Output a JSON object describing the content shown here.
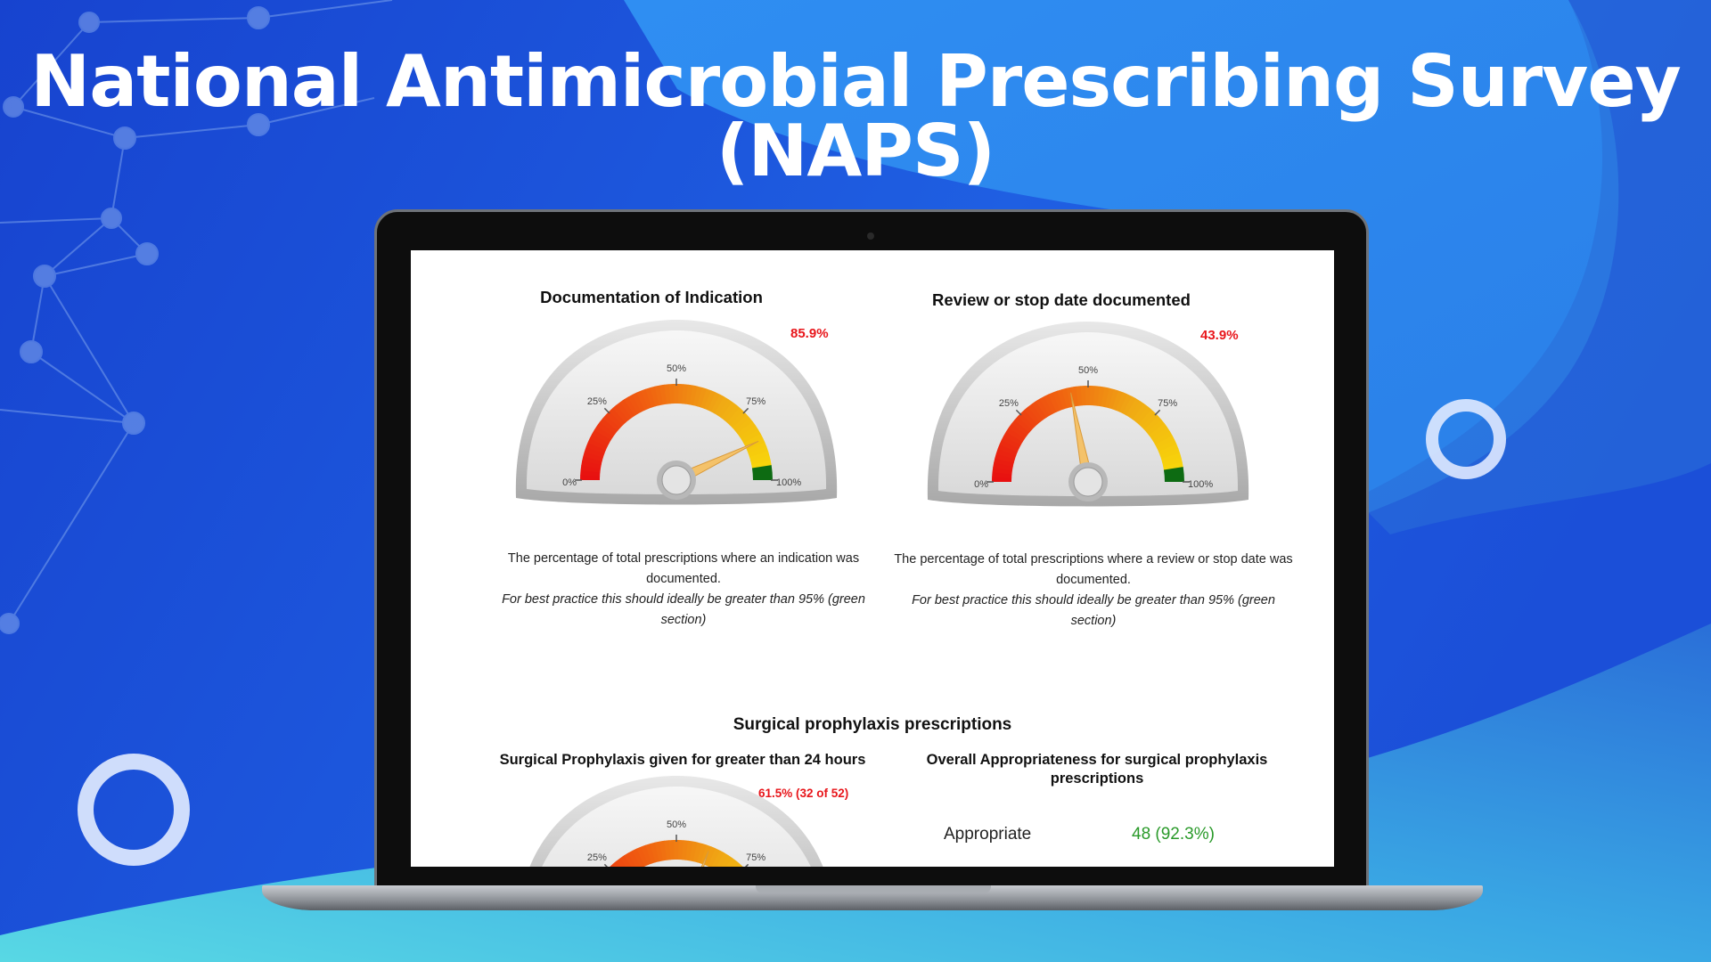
{
  "header": {
    "title_line1": "National Antimicrobial Prescribing Survey",
    "title_line2": "(NAPS)"
  },
  "colors": {
    "bg_blue": "#1a47d6",
    "bg_light_blue": "#2e8ff0",
    "teal": "#4fd3e0",
    "value_red": "#e8161b",
    "appropriate_green": "#2a9a2a"
  },
  "gauge_ticks": [
    "0%",
    "25%",
    "50%",
    "75%",
    "100%"
  ],
  "panels": [
    {
      "title": "Documentation of Indication",
      "value_label": "85.9%",
      "value": 85.9,
      "description": "The percentage of total prescriptions where an indication was documented.",
      "note": "For best practice this should ideally be greater than 95% (green section)"
    },
    {
      "title": "Review or stop date documented",
      "value_label": "43.9%",
      "value": 43.9,
      "description": "The percentage of total prescriptions where a review or stop date was documented.",
      "note": "For best practice this should ideally be greater than 95% (green section)"
    }
  ],
  "surgical": {
    "section_title": "Surgical prophylaxis prescriptions",
    "gauge_title": "Surgical Prophylaxis given for greater than 24 hours",
    "gauge_value_label": "61.5% (32 of 52)",
    "gauge_value": 61.5,
    "appropriateness_title": "Overall Appropriateness for surgical prophylaxis prescriptions",
    "appropriate_label": "Appropriate",
    "appropriate_value": "48 (92.3%)"
  }
}
